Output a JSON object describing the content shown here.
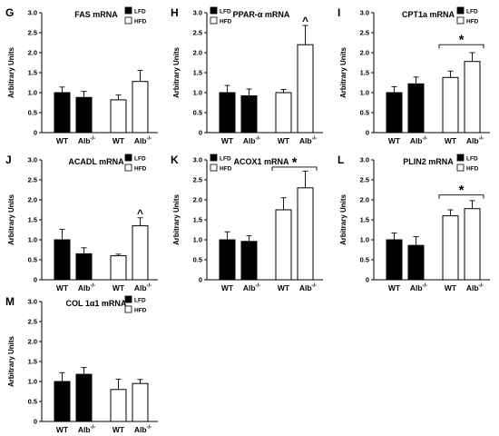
{
  "chart_data": [
    {
      "panel_label": "G",
      "title": "FAS mRNA",
      "type": "bar",
      "ylabel": "Arbitrary Units",
      "ylim": [
        0,
        3.0
      ],
      "yticks": [
        "0",
        "0.5",
        "1.0",
        "1.5",
        "2.0",
        "2.5",
        "3.0"
      ],
      "grid": false,
      "legend_position": "top-right",
      "legend": [
        "LFD",
        "HFD"
      ],
      "groups": [
        {
          "name": "LFD",
          "color": "#000000",
          "categories": [
            "WT",
            "Alb"
          ],
          "values": [
            1.0,
            0.88
          ],
          "errors": [
            0.14,
            0.15
          ]
        },
        {
          "name": "HFD",
          "color": "#ffffff",
          "categories": [
            "WT",
            "Alb"
          ],
          "values": [
            0.82,
            1.28
          ],
          "errors": [
            0.12,
            0.28
          ]
        }
      ],
      "superscript": "-/-",
      "annotations": []
    },
    {
      "panel_label": "H",
      "title": "PPAR-α mRNA",
      "type": "bar",
      "ylabel": "Arbitrary Units",
      "ylim": [
        0,
        3.0
      ],
      "yticks": [
        "0",
        "0.5",
        "1.0",
        "1.5",
        "2.0",
        "2.5",
        "3.0"
      ],
      "grid": false,
      "legend_position": "top-left",
      "legend": [
        "LFD",
        "HFD"
      ],
      "groups": [
        {
          "name": "LFD",
          "color": "#000000",
          "categories": [
            "WT",
            "Alb"
          ],
          "values": [
            1.0,
            0.92
          ],
          "errors": [
            0.18,
            0.17
          ]
        },
        {
          "name": "HFD",
          "color": "#ffffff",
          "categories": [
            "WT",
            "Alb"
          ],
          "values": [
            1.0,
            2.2
          ],
          "errors": [
            0.08,
            0.48
          ]
        }
      ],
      "superscript": "-/-",
      "annotations": [
        {
          "text": "^",
          "kind": "caret",
          "group": 1,
          "bar": 1
        }
      ]
    },
    {
      "panel_label": "I",
      "title": "CPT1a mRNA",
      "type": "bar",
      "ylabel": "Arbitrary Units",
      "ylim": [
        0,
        3.0
      ],
      "yticks": [
        "0",
        "0.5",
        "1.0",
        "1.5",
        "2.0",
        "2.5",
        "3.0"
      ],
      "grid": false,
      "legend_position": "top-right",
      "legend": [
        "LFD",
        "HFD"
      ],
      "groups": [
        {
          "name": "LFD",
          "color": "#000000",
          "categories": [
            "WT",
            "Alb"
          ],
          "values": [
            1.0,
            1.22
          ],
          "errors": [
            0.15,
            0.17
          ]
        },
        {
          "name": "HFD",
          "color": "#ffffff",
          "categories": [
            "WT",
            "Alb"
          ],
          "values": [
            1.38,
            1.78
          ],
          "errors": [
            0.16,
            0.22
          ]
        }
      ],
      "superscript": "-/-",
      "annotations": [
        {
          "text": "*",
          "kind": "bracket",
          "group": 1,
          "level": 2.2
        }
      ]
    },
    {
      "panel_label": "J",
      "title": "ACADL mRNA",
      "type": "bar",
      "ylabel": "Arbitrary Units",
      "ylim": [
        0,
        3.0
      ],
      "yticks": [
        "0",
        "0.5",
        "1.0",
        "1.5",
        "2.0",
        "2.5",
        "3.0"
      ],
      "grid": false,
      "legend_position": "top-right",
      "legend": [
        "LFD",
        "HFD"
      ],
      "groups": [
        {
          "name": "LFD",
          "color": "#000000",
          "categories": [
            "WT",
            "Alb"
          ],
          "values": [
            1.0,
            0.65
          ],
          "errors": [
            0.26,
            0.15
          ]
        },
        {
          "name": "HFD",
          "color": "#ffffff",
          "categories": [
            "WT",
            "Alb"
          ],
          "values": [
            0.6,
            1.35
          ],
          "errors": [
            0.04,
            0.2
          ]
        }
      ],
      "superscript": "-/-",
      "annotations": [
        {
          "text": "^",
          "kind": "caret",
          "group": 1,
          "bar": 1
        }
      ]
    },
    {
      "panel_label": "K",
      "title": "ACOX1 mRNA",
      "type": "bar",
      "ylabel": "Arbitrary Units",
      "ylim": [
        0,
        3.0
      ],
      "yticks": [
        "0",
        "0.5",
        "1.0",
        "1.5",
        "2.0",
        "2.5",
        "3.0"
      ],
      "grid": false,
      "legend_position": "top-left",
      "legend": [
        "LFD",
        "HFD"
      ],
      "groups": [
        {
          "name": "LFD",
          "color": "#000000",
          "categories": [
            "WT",
            "Alb"
          ],
          "values": [
            1.0,
            0.96
          ],
          "errors": [
            0.2,
            0.14
          ]
        },
        {
          "name": "HFD",
          "color": "#ffffff",
          "categories": [
            "WT",
            "Alb"
          ],
          "values": [
            1.75,
            2.3
          ],
          "errors": [
            0.3,
            0.42
          ]
        }
      ],
      "superscript": "-/-",
      "annotations": [
        {
          "text": "*",
          "kind": "bracket",
          "group": 1,
          "level": 2.82
        }
      ]
    },
    {
      "panel_label": "L",
      "title": "PLIN2 mRNA",
      "type": "bar",
      "ylabel": "Arbitrary Units",
      "ylim": [
        0,
        3.0
      ],
      "yticks": [
        "0",
        "0.5",
        "1.0",
        "1.5",
        "2.0",
        "2.5",
        "3.0"
      ],
      "grid": false,
      "legend_position": "top-right",
      "legend": [
        "LFD",
        "HFD"
      ],
      "groups": [
        {
          "name": "LFD",
          "color": "#000000",
          "categories": [
            "WT",
            "Alb"
          ],
          "values": [
            1.0,
            0.86
          ],
          "errors": [
            0.17,
            0.22
          ]
        },
        {
          "name": "HFD",
          "color": "#ffffff",
          "categories": [
            "WT",
            "Alb"
          ],
          "values": [
            1.6,
            1.78
          ],
          "errors": [
            0.15,
            0.2
          ]
        }
      ],
      "superscript": "-/-",
      "annotations": [
        {
          "text": "*",
          "kind": "bracket",
          "group": 1,
          "level": 2.12
        }
      ]
    },
    {
      "panel_label": "M",
      "title": "COL 1α1 mRNA",
      "type": "bar",
      "ylabel": "Arbitrary Units",
      "ylim": [
        0,
        3.0
      ],
      "yticks": [
        "0",
        "0.5",
        "1.0",
        "1.5",
        "2.0",
        "2.5",
        "3.0"
      ],
      "grid": false,
      "legend_position": "top-right",
      "legend": [
        "LFD",
        "HFD"
      ],
      "groups": [
        {
          "name": "LFD",
          "color": "#000000",
          "categories": [
            "WT",
            "Alb"
          ],
          "values": [
            1.0,
            1.18
          ],
          "errors": [
            0.22,
            0.17
          ]
        },
        {
          "name": "HFD",
          "color": "#ffffff",
          "categories": [
            "WT",
            "Alb"
          ],
          "values": [
            0.8,
            0.95
          ],
          "errors": [
            0.26,
            0.1
          ]
        }
      ],
      "superscript": "-/-",
      "annotations": []
    }
  ]
}
